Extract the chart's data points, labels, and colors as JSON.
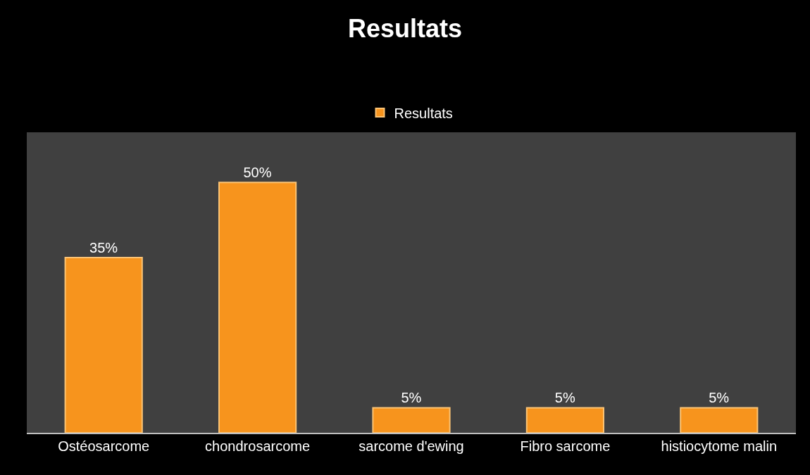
{
  "chart_data": {
    "type": "bar",
    "title": "Resultats",
    "categories": [
      "Ostéosarcome",
      "chondrosarcome",
      "sarcome d'ewing",
      "Fibro sarcome",
      "histiocytome malin"
    ],
    "series": [
      {
        "name": "Resultats",
        "color": "#f7941d",
        "values": [
          35,
          50,
          5,
          5,
          5
        ],
        "value_labels": [
          "35%",
          "50%",
          "5%",
          "5%",
          "5%"
        ]
      }
    ],
    "legend": "top",
    "grid": false
  }
}
